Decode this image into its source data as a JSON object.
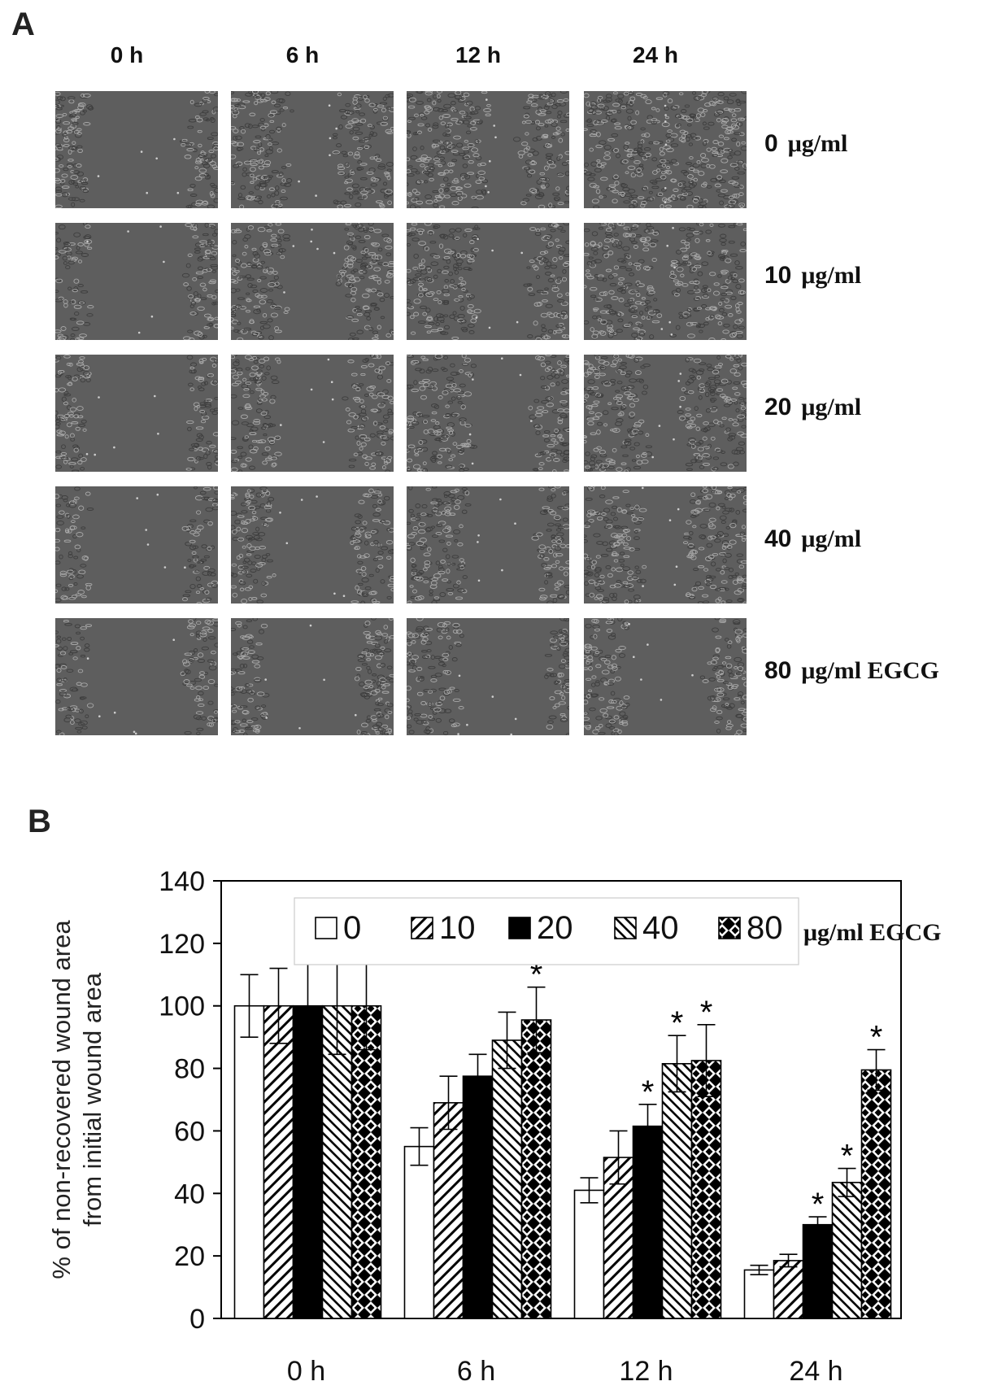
{
  "panel_a": {
    "label": "A",
    "columns": [
      "0 h",
      "6 h",
      "12 h",
      "24 h"
    ],
    "rows": [
      {
        "value": "0",
        "unit": "μg/ml"
      },
      {
        "value": "10",
        "unit": "μg/ml"
      },
      {
        "value": "20",
        "unit": "μg/ml"
      },
      {
        "value": "40",
        "unit": "μg/ml"
      },
      {
        "value": "80",
        "unit": "μg/ml EGCG"
      }
    ],
    "wound_gap_fraction": [
      [
        0.62,
        0.3,
        0.22,
        0.0
      ],
      [
        0.62,
        0.36,
        0.34,
        0.12
      ],
      [
        0.62,
        0.44,
        0.4,
        0.22
      ],
      [
        0.62,
        0.52,
        0.46,
        0.28
      ],
      [
        0.62,
        0.6,
        0.56,
        0.5
      ]
    ]
  },
  "panel_b": {
    "label": "B",
    "legend_unit": "μg/ml EGCG"
  },
  "chart_data": {
    "type": "bar",
    "categories": [
      "0 h",
      "6 h",
      "12 h",
      "24 h"
    ],
    "ylabel": "% of non-recovered wound area from initial wound area",
    "ylim": [
      0,
      140
    ],
    "yticks": [
      0,
      20,
      40,
      60,
      80,
      100,
      120,
      140
    ],
    "grid": false,
    "legend_position": "top",
    "series": [
      {
        "name": "0",
        "pattern": "open",
        "values": [
          100,
          55,
          41,
          15.5
        ],
        "errors": [
          10,
          6,
          4,
          1.5
        ],
        "significant": [
          false,
          false,
          false,
          false
        ]
      },
      {
        "name": "10",
        "pattern": "hatch-forward",
        "values": [
          100,
          69,
          51.5,
          18.5
        ],
        "errors": [
          12,
          8.5,
          8.5,
          2
        ],
        "significant": [
          false,
          false,
          false,
          false
        ]
      },
      {
        "name": "20",
        "pattern": "solid",
        "values": [
          100,
          77.5,
          61.5,
          30
        ],
        "errors": [
          17,
          7,
          7,
          2.5
        ],
        "significant": [
          false,
          false,
          true,
          true
        ]
      },
      {
        "name": "40",
        "pattern": "hatch-back",
        "values": [
          100,
          89,
          81.5,
          43.5
        ],
        "errors": [
          15.5,
          9,
          9,
          4.5
        ],
        "significant": [
          false,
          false,
          true,
          true
        ]
      },
      {
        "name": "80",
        "pattern": "checker",
        "values": [
          100,
          95.5,
          82.5,
          79.5
        ],
        "errors": [
          14,
          10.5,
          11.5,
          6.5
        ],
        "significant": [
          false,
          true,
          true,
          true
        ]
      }
    ],
    "significance_marker": "*"
  }
}
